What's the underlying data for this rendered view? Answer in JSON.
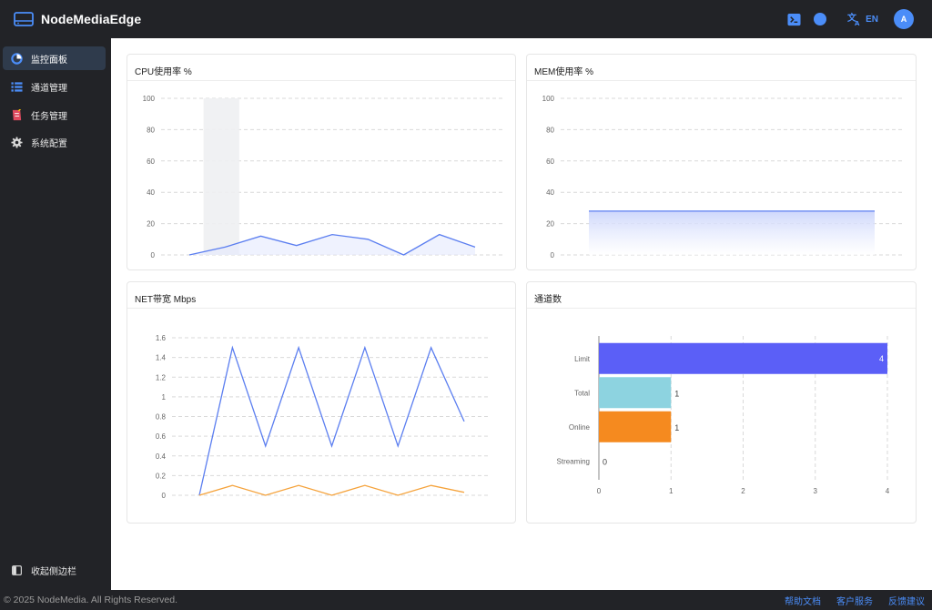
{
  "app": {
    "name": "NodeMediaEdge",
    "lang_label": "EN",
    "avatar_initial": "A"
  },
  "sidebar": {
    "items": [
      {
        "label": "监控面板",
        "icon": "pie-chart-icon",
        "active": true
      },
      {
        "label": "通道管理",
        "icon": "list-icon",
        "active": false
      },
      {
        "label": "任务管理",
        "icon": "task-icon",
        "active": false
      },
      {
        "label": "系统配置",
        "icon": "gear-icon",
        "active": false
      }
    ],
    "collapse_label": "收起侧边栏"
  },
  "footer": {
    "copyright": "© 2025 NodeMedia. All Rights Reserved.",
    "links": [
      "帮助文档",
      "客户服务",
      "反馈建议"
    ]
  },
  "colors": {
    "accent": "#4b8df8",
    "dark_bg": "#222327",
    "line_blue": "#5b7ef0",
    "line_orange": "#f5a23a",
    "bar_limit": "#5b5ff7",
    "bar_total": "#8dd3e0",
    "bar_online": "#f58a1f"
  },
  "chart_data": [
    {
      "type": "line",
      "title": "CPU使用率 %",
      "ylim": [
        0,
        100
      ],
      "yticks": [
        0,
        20,
        40,
        60,
        80,
        100
      ],
      "series": [
        {
          "values": [
            0,
            5,
            12,
            6,
            13,
            10,
            0,
            13,
            5
          ]
        }
      ],
      "highlight_index": 1,
      "grid": true
    },
    {
      "type": "area",
      "title": "MEM使用率 %",
      "ylim": [
        0,
        100
      ],
      "yticks": [
        0,
        20,
        40,
        60,
        80,
        100
      ],
      "series": [
        {
          "values": [
            28,
            28
          ]
        }
      ],
      "grid": true
    },
    {
      "type": "line",
      "title": "NET带宽 Mbps",
      "ylim": [
        0,
        1.6
      ],
      "yticks": [
        "0",
        "0.2",
        "0.4",
        "0.6",
        "0.8",
        "1",
        "1.2",
        "1.4",
        "1.6"
      ],
      "series": [
        {
          "color": "blue",
          "values": [
            0,
            1.5,
            0.5,
            1.5,
            0.5,
            1.5,
            0.5,
            1.5,
            0.75
          ]
        },
        {
          "color": "orange",
          "values": [
            0,
            0.1,
            0,
            0.1,
            0,
            0.1,
            0,
            0.1,
            0.03
          ]
        }
      ],
      "grid": true
    },
    {
      "type": "bar",
      "orientation": "horizontal",
      "title": "通道数",
      "categories": [
        "Limit",
        "Total",
        "Online",
        "Streaming"
      ],
      "values": [
        4,
        1,
        1,
        0
      ],
      "value_labels": [
        "4",
        "1",
        "1",
        "0"
      ],
      "xlim": [
        0,
        4
      ],
      "xticks": [
        "0",
        "1",
        "2",
        "3",
        "4"
      ],
      "grid": true
    }
  ]
}
